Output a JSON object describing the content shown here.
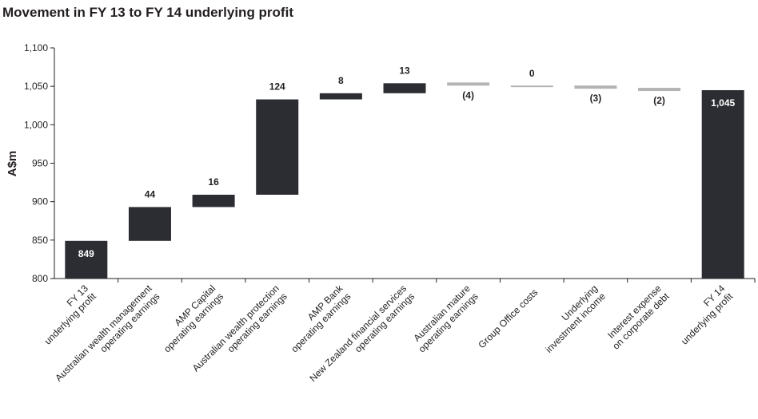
{
  "title": "Movement in FY 13 to FY 14 underlying profit",
  "chart_data": {
    "type": "bar",
    "subtype": "waterfall",
    "title": "Movement in FY 13 to FY 14 underlying profit",
    "ylabel": "A$m",
    "ylim": [
      800,
      1100
    ],
    "yticks": [
      "800",
      "850",
      "900",
      "950",
      "1,000",
      "1,050",
      "1,100"
    ],
    "ytick_values": [
      800,
      850,
      900,
      950,
      1000,
      1050,
      1100
    ],
    "grid": false,
    "colors": {
      "dark": "#2b2d33",
      "grey": "#b4b4b4",
      "axis": "#231f20"
    },
    "categories": [
      [
        "FY 13",
        "underlying profit"
      ],
      [
        "Australian wealth management",
        "operating earnings"
      ],
      [
        "AMP Capital",
        "operating earnings"
      ],
      [
        "Australian wealth protection",
        "operating earnings"
      ],
      [
        "AMP Bank",
        "operating earnings"
      ],
      [
        "New Zealand financial services",
        "operating earnings"
      ],
      [
        "Australian mature",
        "operating earnings"
      ],
      [
        "Group Office costs"
      ],
      [
        "Underlying",
        "investment income"
      ],
      [
        "Interest expense",
        "on corporate debt"
      ],
      [
        "FY 14",
        "underlying profit"
      ]
    ],
    "bars": [
      {
        "kind": "total",
        "start": 800,
        "end": 849,
        "label": "849",
        "color": "dark"
      },
      {
        "kind": "delta",
        "start": 849,
        "end": 893,
        "label": "44",
        "color": "dark"
      },
      {
        "kind": "delta",
        "start": 893,
        "end": 909,
        "label": "16",
        "color": "dark"
      },
      {
        "kind": "delta",
        "start": 909,
        "end": 1033,
        "label": "124",
        "color": "dark"
      },
      {
        "kind": "delta",
        "start": 1033,
        "end": 1041,
        "label": "8",
        "color": "dark"
      },
      {
        "kind": "delta",
        "start": 1041,
        "end": 1054,
        "label": "13",
        "color": "dark"
      },
      {
        "kind": "delta",
        "start": 1054,
        "end": 1050,
        "label": "(4)",
        "color": "grey"
      },
      {
        "kind": "delta",
        "start": 1050,
        "end": 1050,
        "label": "0",
        "color": "grey"
      },
      {
        "kind": "delta",
        "start": 1050,
        "end": 1047,
        "label": "(3)",
        "color": "grey"
      },
      {
        "kind": "delta",
        "start": 1047,
        "end": 1045,
        "label": "(2)",
        "color": "grey"
      },
      {
        "kind": "total",
        "start": 800,
        "end": 1045,
        "label": "1,045",
        "color": "dark"
      }
    ]
  }
}
